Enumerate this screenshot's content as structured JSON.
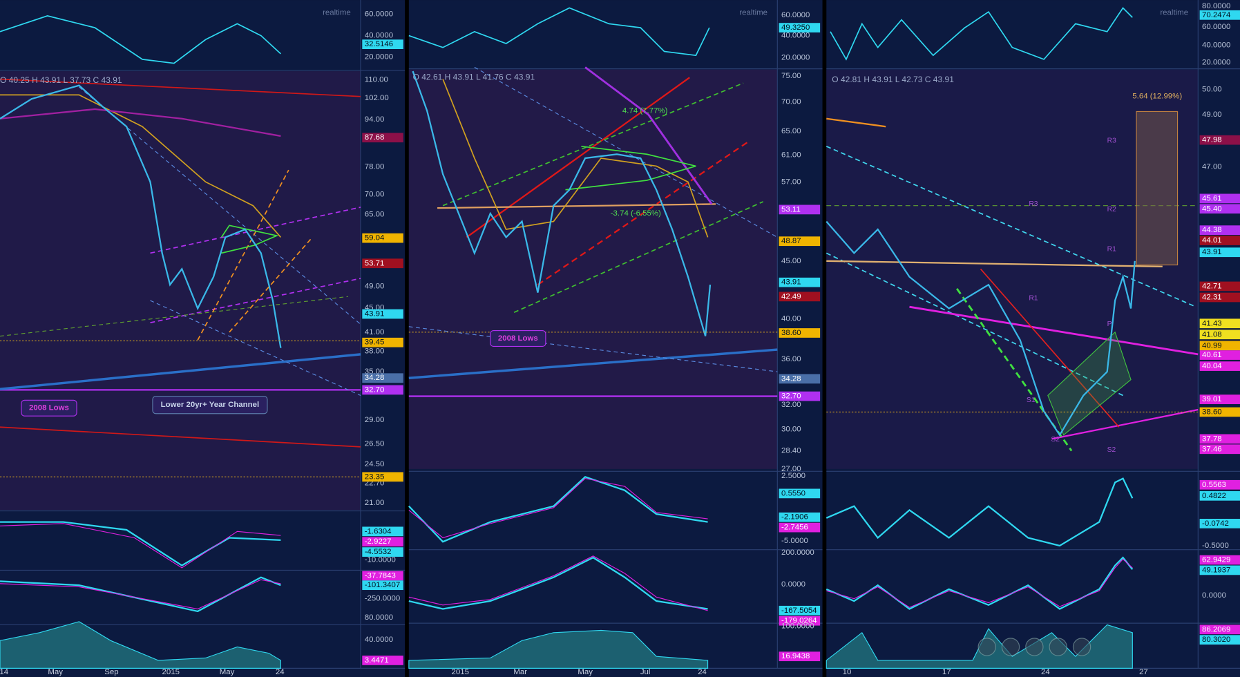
{
  "panels": [
    {
      "osc": {
        "realtime": "realtime",
        "axis": [
          "60.0000",
          "40.0000",
          "20.0000"
        ],
        "badges": [
          {
            "label": "32.5146",
            "color": "#2fd8f0"
          }
        ]
      },
      "main": {
        "ohlc": "O 40.25  H 43.91  L 37.73  C 43.91",
        "axis": [
          "110.00",
          "102.00",
          "94.00",
          "78.00",
          "70.00",
          "65.00",
          "49.00",
          "45.00",
          "41.00",
          "38.00",
          "35.00",
          "29.00",
          "26.50",
          "24.50",
          "22.70",
          "21.00"
        ],
        "badges": [
          {
            "label": "87.68",
            "color": "#8c1048"
          },
          {
            "label": "59.04",
            "color": "#f0b400"
          },
          {
            "label": "53.71",
            "color": "#a01020"
          },
          {
            "label": "43.91",
            "color": "#2fd8f0"
          },
          {
            "label": "39.45",
            "color": "#f0b400"
          },
          {
            "label": "34.28",
            "color": "#4a6fa8"
          },
          {
            "label": "32.70",
            "color": "#b030f0"
          },
          {
            "label": "23.35",
            "color": "#f0b400"
          }
        ],
        "annotations": [
          "2008 Lows",
          "Lower 20yr+ Year Channel"
        ]
      },
      "macd": {
        "axis": [
          "-10.0000"
        ],
        "badges": [
          {
            "label": "-1.6304",
            "color": "#2fd8f0"
          },
          {
            "label": "-2.9227",
            "color": "#e020e0"
          },
          {
            "label": "-4.5532",
            "color": "#2fd8f0"
          }
        ]
      },
      "cci": {
        "axis": [
          "-250.0000"
        ],
        "badges": [
          {
            "label": "-37.7843",
            "color": "#e020e0"
          },
          {
            "label": "-101.3407",
            "color": "#2fd8f0"
          }
        ]
      },
      "vol": {
        "axis": [
          "80.0000",
          "40.0000"
        ],
        "badges": [
          {
            "label": "3.4471",
            "color": "#e020e0"
          }
        ]
      },
      "xaxis": [
        "14",
        "May",
        "Sep",
        "2015",
        "May",
        "24"
      ]
    },
    {
      "osc": {
        "realtime": "realtime",
        "axis": [
          "60.0000",
          "40.0000",
          "20.0000"
        ],
        "badges": [
          {
            "label": "49.3250",
            "color": "#2fd8f0"
          }
        ]
      },
      "main": {
        "ohlc": "O 42.61  H 43.91  L 41.76  C 43.91",
        "axis": [
          "75.00",
          "70.00",
          "65.00",
          "61.00",
          "57.00",
          "45.00",
          "40.00",
          "36.00",
          "32.00",
          "30.00",
          "28.40",
          "27.00"
        ],
        "badges": [
          {
            "label": "53.11",
            "color": "#b030f0"
          },
          {
            "label": "48.87",
            "color": "#f0b400"
          },
          {
            "label": "43.91",
            "color": "#2fd8f0"
          },
          {
            "label": "42.49",
            "color": "#a01020"
          },
          {
            "label": "38.60",
            "color": "#f0b400"
          },
          {
            "label": "34.28",
            "color": "#4a6fa8"
          },
          {
            "label": "32.70",
            "color": "#b030f0"
          }
        ],
        "annotations": [
          "4.74 (7.77%)",
          "-3.74 (-6.55%)",
          "2008 Lows"
        ]
      },
      "macd": {
        "axis": [
          "2.5000",
          "-5.0000"
        ],
        "badges": [
          {
            "label": "0.5550",
            "color": "#2fd8f0"
          },
          {
            "label": "-2.1906",
            "color": "#2fd8f0"
          },
          {
            "label": "-2.7456",
            "color": "#e020e0"
          }
        ]
      },
      "cci": {
        "axis": [
          "200.0000",
          "0.0000"
        ],
        "badges": [
          {
            "label": "-167.5054",
            "color": "#2fd8f0"
          },
          {
            "label": "-179.0264",
            "color": "#e020e0"
          }
        ]
      },
      "vol": {
        "axis": [
          "100.0000"
        ],
        "badges": [
          {
            "label": "16.9438",
            "color": "#e020e0"
          }
        ]
      },
      "xaxis": [
        "2015",
        "Mar",
        "May",
        "Jul",
        "24"
      ]
    },
    {
      "osc": {
        "realtime": "realtime",
        "axis": [
          "80.0000",
          "60.0000",
          "40.0000",
          "20.0000"
        ],
        "badges": [
          {
            "label": "70.2474",
            "color": "#2fd8f0"
          }
        ]
      },
      "main": {
        "ohlc": "O 42.81  H 43.91  L 42.73  C 43.91",
        "axis": [
          "50.00",
          "49.00",
          "47.00"
        ],
        "badges": [
          {
            "label": "47.98",
            "color": "#8c1048"
          },
          {
            "label": "45.61",
            "color": "#b030f0"
          },
          {
            "label": "45.40",
            "color": "#b030f0"
          },
          {
            "label": "44.38",
            "color": "#b030f0"
          },
          {
            "label": "44.01",
            "color": "#a01020"
          },
          {
            "label": "43.91",
            "color": "#2fd8f0"
          },
          {
            "label": "42.71",
            "color": "#a01020"
          },
          {
            "label": "42.31",
            "color": "#a01020"
          },
          {
            "label": "41.43",
            "color": "#f0e020"
          },
          {
            "label": "41.08",
            "color": "#f0e020"
          },
          {
            "label": "40.99",
            "color": "#f0b400"
          },
          {
            "label": "40.61",
            "color": "#e020e0"
          },
          {
            "label": "40.04",
            "color": "#e020e0"
          },
          {
            "label": "39.01",
            "color": "#e020e0"
          },
          {
            "label": "38.60",
            "color": "#f0b400"
          },
          {
            "label": "37.78",
            "color": "#e020e0"
          },
          {
            "label": "37.46",
            "color": "#e020e0"
          }
        ],
        "annotations": [
          "5.64 (12.99%)"
        ],
        "pivots": [
          "R3",
          "R3",
          "R2",
          "R1",
          "R1",
          "P",
          "S1",
          "S2",
          "S2"
        ]
      },
      "macd": {
        "axis": [
          "-0.5000"
        ],
        "badges": [
          {
            "label": "0.5563",
            "color": "#e020e0"
          },
          {
            "label": "0.4822",
            "color": "#2fd8f0"
          },
          {
            "label": "-0.0742",
            "color": "#2fd8f0"
          }
        ]
      },
      "cci": {
        "axis": [
          "0.0000"
        ],
        "badges": [
          {
            "label": "62.9429",
            "color": "#e020e0"
          },
          {
            "label": "49.1937",
            "color": "#2fd8f0"
          }
        ]
      },
      "vol": {
        "axis": [],
        "badges": [
          {
            "label": "86.2069",
            "color": "#e020e0"
          },
          {
            "label": "80.3020",
            "color": "#2fd8f0"
          }
        ]
      },
      "xaxis": [
        "10",
        "17",
        "24",
        "27"
      ]
    }
  ]
}
